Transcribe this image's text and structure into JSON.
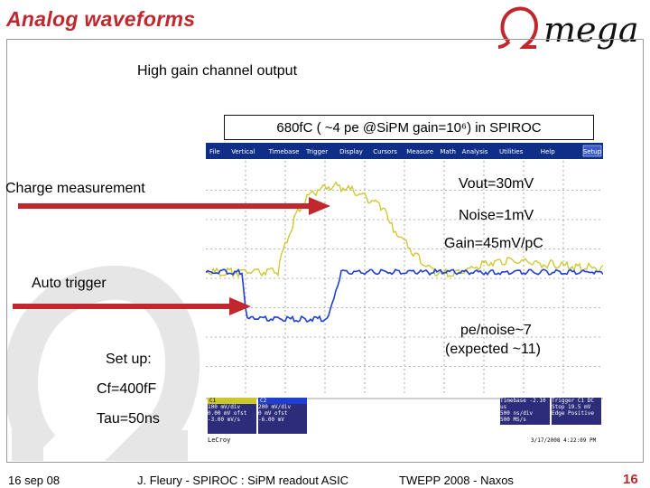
{
  "slide": {
    "title": "Analog waveforms",
    "logo_text": "Omega",
    "subtitle": "High gain channel output",
    "charge_box": "680fC ( ~4 pe @SiPM gain=10⁶) in SPIROC",
    "annotations": {
      "charge_measurement": "Charge measurement",
      "vout": "Vout=30mV",
      "noise": "Noise=1mV",
      "gain": "Gain=45mV/pC",
      "auto_trigger": "Auto trigger",
      "pe_noise": "pe/noise~7",
      "expected": "(expected ~11)",
      "setup": "Set up:",
      "cf": "Cf=400fF",
      "tau": "Tau=50ns"
    },
    "footer": {
      "date": "16 sep 08",
      "author": "J. Fleury - SPIROC : SiPM readout ASIC",
      "conference": "TWEPP 2008 - Naxos",
      "page": "16"
    }
  },
  "scope": {
    "menu": [
      "File",
      "Vertical",
      "Timebase",
      "Trigger",
      "Display",
      "Cursors",
      "Measure",
      "Math",
      "Analysis",
      "Utilities",
      "Help"
    ],
    "menu_button": "Setup",
    "channels": [
      {
        "name": "C1",
        "lines": [
          "100 mV/div",
          "0.00 mV ofst",
          "-3.00 mV/s"
        ]
      },
      {
        "name": "C2",
        "lines": [
          "200 mV/div",
          "0 mV ofst",
          "-6.00 mV"
        ]
      }
    ],
    "timebase": {
      "lines": [
        "Timebase -2.10 us",
        "500 ns/div",
        "500 MS/s"
      ]
    },
    "trigger": {
      "lines": [
        "Trigger C1 DC",
        "Stop 19.5 mV",
        "Edge Positive"
      ]
    },
    "brand": "LeCroy",
    "timestamp": "3/17/2008 4:22:09 PM",
    "colors": {
      "channel1": "#c9c72a",
      "channel2": "#1f3fd0",
      "menu_bar": "#0f2f86",
      "grid": "#6f6f6f"
    }
  },
  "colors": {
    "title": "#c0282d",
    "arrow": "#c0282d"
  }
}
